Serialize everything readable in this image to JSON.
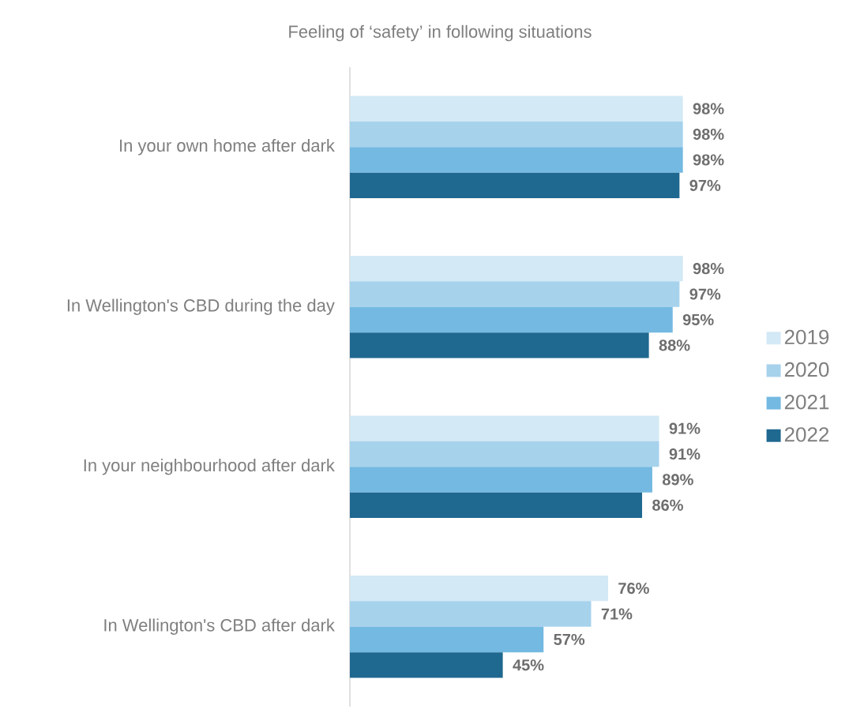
{
  "chart_data": {
    "type": "bar",
    "orientation": "horizontal",
    "title": "Feeling of ‘safety’ in following situations",
    "categories": [
      "In your own home after dark",
      "In Wellington's CBD during the day",
      "In your neighbourhood after dark",
      "In Wellington's CBD after dark"
    ],
    "series": [
      {
        "name": "2019",
        "color": "#d3e9f5",
        "values": [
          98,
          98,
          91,
          76
        ],
        "value_labels": [
          "98%",
          "98%",
          "91%",
          "76%"
        ]
      },
      {
        "name": "2020",
        "color": "#a6d2ec",
        "values": [
          98,
          97,
          91,
          71
        ],
        "value_labels": [
          "98%",
          "97%",
          "91%",
          "71%"
        ]
      },
      {
        "name": "2021",
        "color": "#74b9e1",
        "values": [
          98,
          95,
          89,
          57
        ],
        "value_labels": [
          "98%",
          "95%",
          "89%",
          "57%"
        ]
      },
      {
        "name": "2022",
        "color": "#1f6890",
        "values": [
          97,
          88,
          86,
          45
        ],
        "value_labels": [
          "97%",
          "88%",
          "86%",
          "45%"
        ]
      }
    ],
    "legend": "right"
  }
}
